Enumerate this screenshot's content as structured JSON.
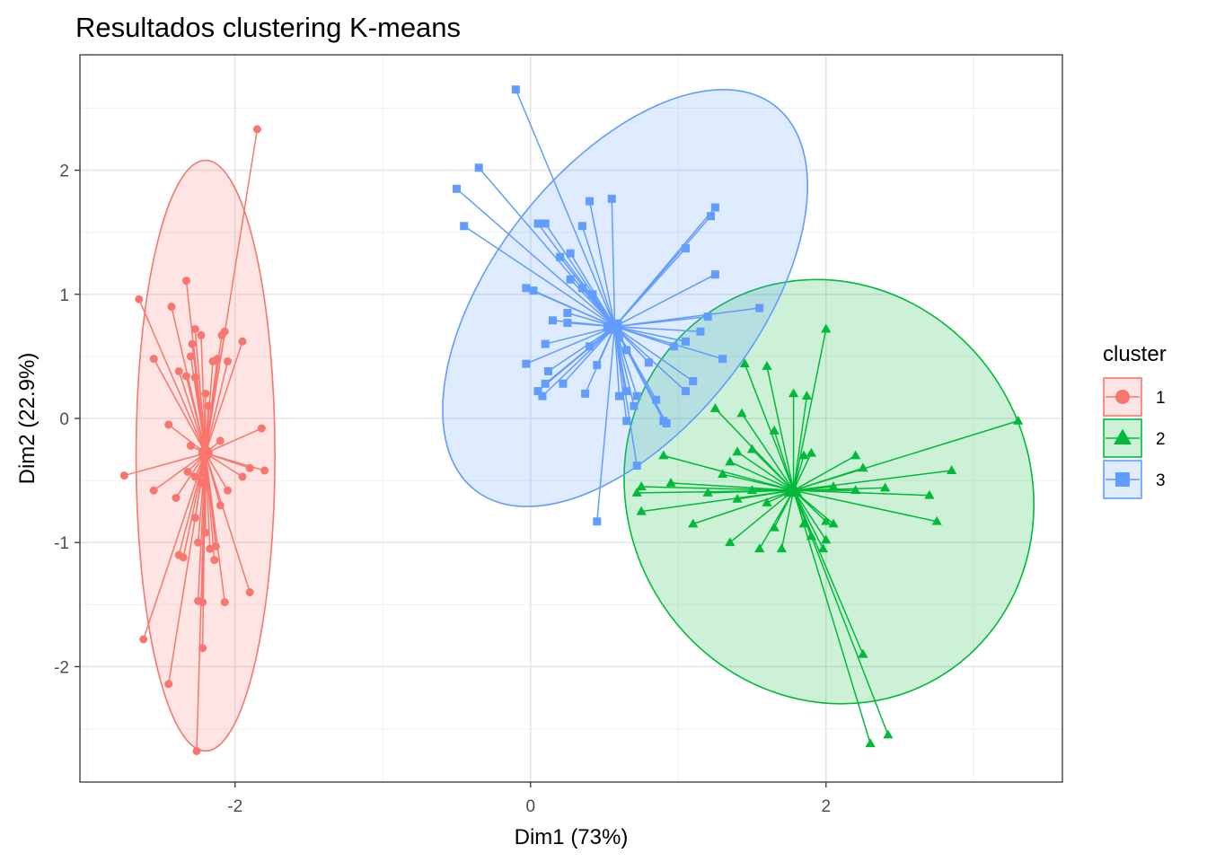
{
  "chart_data": {
    "type": "scatter",
    "title": "Resultados clustering K-means",
    "xlabel": "Dim1 (73%)",
    "ylabel": "Dim2 (22.9%)",
    "xlim": [
      -3.05,
      3.6
    ],
    "ylim": [
      -2.93,
      2.93
    ],
    "x_ticks": [
      -2,
      0,
      2
    ],
    "y_ticks": [
      -2,
      -1,
      0,
      1,
      2
    ],
    "x_tick_labels": [
      "-2",
      "0",
      "2"
    ],
    "y_tick_labels": [
      "-2",
      "-1",
      "0",
      "1",
      "2"
    ],
    "grid": true,
    "legend": {
      "title": "cluster",
      "position": "right"
    },
    "series": [
      {
        "name": "1",
        "color": "#F8766D",
        "shape": "circle",
        "centroid": [
          -2.2,
          -0.28
        ],
        "ellipse": {
          "center": [
            -2.2,
            -0.3
          ],
          "rx": 0.47,
          "ry": 2.38,
          "angle": 0
        },
        "points": [
          [
            -1.85,
            2.33
          ],
          [
            -2.33,
            1.11
          ],
          [
            -2.65,
            0.96
          ],
          [
            -2.43,
            0.9
          ],
          [
            -2.23,
            0.67
          ],
          [
            -2.27,
            0.72
          ],
          [
            -2.07,
            0.7
          ],
          [
            -2.09,
            0.67
          ],
          [
            -2.29,
            0.6
          ],
          [
            -1.95,
            0.62
          ],
          [
            -2.3,
            0.5
          ],
          [
            -2.12,
            0.48
          ],
          [
            -2.05,
            0.46
          ],
          [
            -2.15,
            0.46
          ],
          [
            -2.55,
            0.48
          ],
          [
            -2.38,
            0.38
          ],
          [
            -2.33,
            0.34
          ],
          [
            -2.27,
            0.33
          ],
          [
            -2.2,
            0.2
          ],
          [
            -2.18,
            0.1
          ],
          [
            -2.45,
            -0.05
          ],
          [
            -1.82,
            -0.08
          ],
          [
            -2.1,
            -0.18
          ],
          [
            -2.3,
            -0.22
          ],
          [
            -1.9,
            -0.4
          ],
          [
            -1.8,
            -0.42
          ],
          [
            -2.32,
            -0.43
          ],
          [
            -2.27,
            -0.47
          ],
          [
            -1.95,
            -0.47
          ],
          [
            -2.75,
            -0.46
          ],
          [
            -2.23,
            -0.52
          ],
          [
            -2.2,
            -0.55
          ],
          [
            -2.05,
            -0.58
          ],
          [
            -2.55,
            -0.58
          ],
          [
            -2.4,
            -0.64
          ],
          [
            -2.1,
            -0.7
          ],
          [
            -2.27,
            -0.8
          ],
          [
            -2.2,
            -0.92
          ],
          [
            -2.25,
            -1.0
          ],
          [
            -2.17,
            -1.05
          ],
          [
            -2.13,
            -1.03
          ],
          [
            -2.38,
            -1.1
          ],
          [
            -2.35,
            -1.12
          ],
          [
            -2.14,
            -1.14
          ],
          [
            -1.9,
            -1.4
          ],
          [
            -2.25,
            -1.47
          ],
          [
            -2.22,
            -1.48
          ],
          [
            -2.07,
            -1.48
          ],
          [
            -2.62,
            -1.78
          ],
          [
            -2.22,
            -1.85
          ],
          [
            -2.45,
            -2.14
          ],
          [
            -2.26,
            -2.68
          ]
        ]
      },
      {
        "name": "2",
        "color": "#00BA38",
        "shape": "triangle",
        "centroid": [
          1.78,
          -0.58
        ],
        "ellipse": {
          "center": [
            2.02,
            -0.59
          ],
          "rx": 1.46,
          "ry": 1.62,
          "angle": 60
        },
        "points": [
          [
            2.0,
            0.72
          ],
          [
            3.3,
            -0.02
          ],
          [
            1.45,
            0.44
          ],
          [
            1.6,
            0.42
          ],
          [
            1.78,
            0.2
          ],
          [
            1.87,
            0.18
          ],
          [
            1.25,
            0.08
          ],
          [
            1.43,
            0.04
          ],
          [
            1.65,
            -0.1
          ],
          [
            1.85,
            -0.3
          ],
          [
            1.9,
            -0.28
          ],
          [
            2.2,
            -0.3
          ],
          [
            2.25,
            -0.4
          ],
          [
            2.85,
            -0.42
          ],
          [
            0.9,
            -0.3
          ],
          [
            1.4,
            -0.27
          ],
          [
            1.5,
            -0.25
          ],
          [
            1.35,
            -0.35
          ],
          [
            1.3,
            -0.45
          ],
          [
            2.05,
            -0.55
          ],
          [
            2.2,
            -0.58
          ],
          [
            0.95,
            -0.52
          ],
          [
            0.75,
            -0.55
          ],
          [
            1.5,
            -0.58
          ],
          [
            1.75,
            -0.6
          ],
          [
            2.4,
            -0.56
          ],
          [
            2.7,
            -0.62
          ],
          [
            2.75,
            -0.83
          ],
          [
            0.72,
            -0.6
          ],
          [
            1.2,
            -0.6
          ],
          [
            1.4,
            -0.65
          ],
          [
            1.6,
            -0.68
          ],
          [
            2.0,
            -0.83
          ],
          [
            2.05,
            -0.85
          ],
          [
            1.1,
            -0.85
          ],
          [
            1.85,
            -0.85
          ],
          [
            2.0,
            -0.98
          ],
          [
            1.35,
            -1.0
          ],
          [
            1.55,
            -1.05
          ],
          [
            1.7,
            -1.05
          ],
          [
            1.98,
            -1.05
          ],
          [
            0.75,
            -0.75
          ],
          [
            2.25,
            -1.9
          ],
          [
            2.3,
            -2.62
          ],
          [
            2.42,
            -2.55
          ],
          [
            1.65,
            -0.88
          ],
          [
            1.9,
            -0.95
          ]
        ]
      },
      {
        "name": "3",
        "color": "#619CFF",
        "shape": "square",
        "centroid": [
          0.57,
          0.74
        ],
        "ellipse": {
          "center": [
            0.64,
            0.97
          ],
          "rx": 1.65,
          "ry": 1.06,
          "angle": -52
        },
        "points": [
          [
            -0.1,
            2.65
          ],
          [
            -0.35,
            2.02
          ],
          [
            -0.5,
            1.85
          ],
          [
            0.4,
            1.75
          ],
          [
            0.55,
            1.77
          ],
          [
            0.05,
            1.57
          ],
          [
            0.1,
            1.57
          ],
          [
            0.35,
            1.55
          ],
          [
            1.25,
            1.7
          ],
          [
            1.22,
            1.63
          ],
          [
            -0.45,
            1.55
          ],
          [
            0.2,
            1.3
          ],
          [
            0.27,
            1.33
          ],
          [
            1.05,
            1.37
          ],
          [
            1.25,
            1.16
          ],
          [
            0.27,
            1.12
          ],
          [
            0.35,
            1.05
          ],
          [
            0.42,
            1.0
          ],
          [
            -0.03,
            1.05
          ],
          [
            0.02,
            1.03
          ],
          [
            0.25,
            0.85
          ],
          [
            0.15,
            0.79
          ],
          [
            0.25,
            0.77
          ],
          [
            0.52,
            0.73
          ],
          [
            1.2,
            0.82
          ],
          [
            1.55,
            0.89
          ],
          [
            0.1,
            0.6
          ],
          [
            0.4,
            0.58
          ],
          [
            0.6,
            0.65
          ],
          [
            1.05,
            0.62
          ],
          [
            1.15,
            0.7
          ],
          [
            0.97,
            0.58
          ],
          [
            -0.03,
            0.44
          ],
          [
            0.12,
            0.38
          ],
          [
            0.45,
            0.43
          ],
          [
            0.65,
            0.55
          ],
          [
            0.8,
            0.45
          ],
          [
            1.3,
            0.48
          ],
          [
            0.22,
            0.28
          ],
          [
            0.1,
            0.28
          ],
          [
            1.1,
            0.3
          ],
          [
            1.05,
            0.22
          ],
          [
            0.37,
            0.2
          ],
          [
            0.65,
            0.22
          ],
          [
            0.72,
            0.18
          ],
          [
            0.05,
            0.22
          ],
          [
            0.08,
            0.18
          ],
          [
            0.6,
            0.18
          ],
          [
            0.7,
            0.1
          ],
          [
            0.85,
            0.15
          ],
          [
            0.9,
            -0.02
          ],
          [
            0.92,
            -0.04
          ],
          [
            0.65,
            -0.02
          ],
          [
            0.72,
            -0.38
          ],
          [
            0.45,
            -0.83
          ]
        ]
      }
    ]
  }
}
